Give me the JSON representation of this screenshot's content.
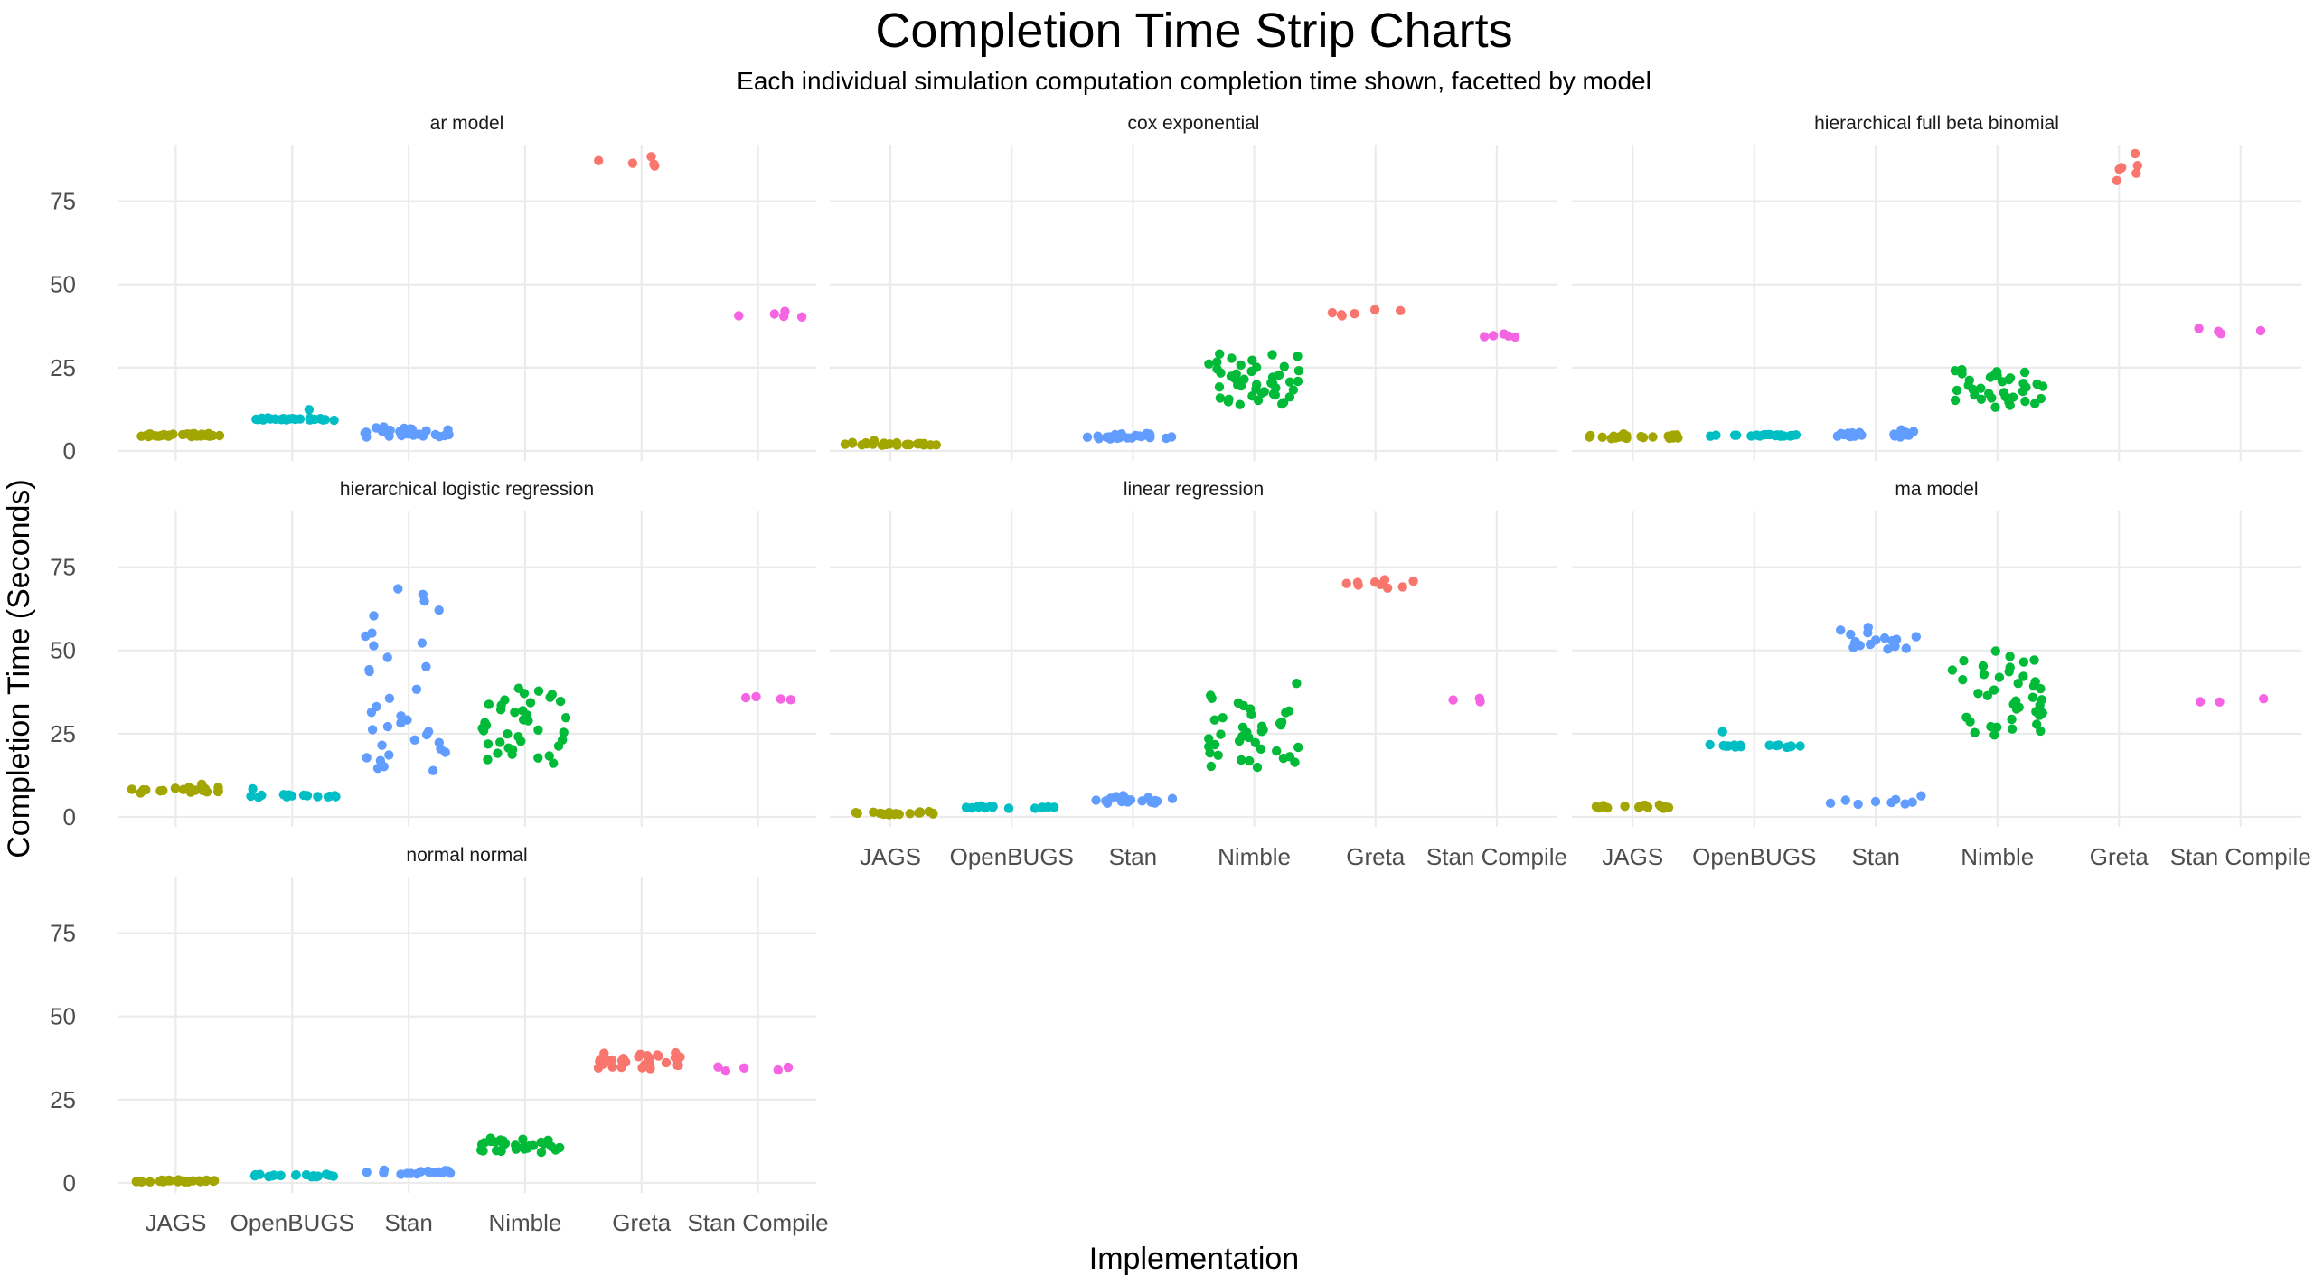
{
  "chart_data": {
    "type": "scatter",
    "subtype": "strip-chart-faceted",
    "title": "Completion Time Strip Charts",
    "subtitle": "Each individual simulation computation completion time shown, facetted by model",
    "xlabel": "Implementation",
    "ylabel": "Completion Time (Seconds)",
    "ylim": [
      -3,
      92
    ],
    "yticks": [
      0,
      25,
      50,
      75
    ],
    "categories": [
      "JAGS",
      "OpenBUGS",
      "Stan",
      "Nimble",
      "Greta",
      "Stan Compile"
    ],
    "colors": {
      "JAGS": "#A3A500",
      "OpenBUGS": "#00BFC4",
      "Stan": "#619CFF",
      "Nimble": "#00BA38",
      "Greta": "#F8766D",
      "Stan Compile": "#F564E3"
    },
    "facets": [
      {
        "label": "ar model",
        "series": {
          "JAGS": [
            4.9,
            4.4,
            5.1,
            4.6,
            4.3,
            5.0,
            4.7,
            4.4,
            5.2,
            4.8,
            4.5,
            4.6,
            5.0,
            4.3,
            4.9,
            4.7,
            5.1,
            4.5,
            4.8,
            4.6,
            4.4,
            5.0,
            4.7,
            4.9,
            4.5,
            4.8,
            4.6,
            5.2,
            4.4,
            4.7
          ],
          "OpenBUGS": [
            9.6,
            9.3,
            9.8,
            9.5,
            9.4,
            9.7,
            9.2,
            9.6,
            9.5,
            9.9,
            9.3,
            9.4,
            9.7,
            9.6,
            9.5,
            9.3,
            9.8,
            9.4,
            9.6,
            9.5,
            12.4,
            9.7,
            9.3,
            9.6,
            9.5
          ],
          "Stan": [
            5.8,
            4.6,
            6.3,
            5.1,
            4.2,
            5.5,
            6.9,
            4.8,
            5.3,
            6.1,
            4.4,
            5.7,
            7.2,
            4.9,
            5.2,
            6.5,
            4.3,
            5.0,
            6.0,
            5.6,
            4.7,
            6.8,
            5.4,
            4.5,
            6.2,
            5.1,
            4.9,
            5.9,
            6.6,
            4.6
          ],
          "Nimble": [],
          "Greta": [
            88.4,
            87.2,
            86.1,
            85.6,
            86.4
          ],
          "Stan Compile": [
            41.9,
            41.1,
            40.6,
            40.4,
            40.2
          ]
        }
      },
      {
        "label": "cox exponential",
        "series": {
          "JAGS": [
            2.1,
            1.8,
            2.4,
            1.9,
            2.2,
            1.7,
            2.0,
            2.3,
            1.8,
            2.5,
            2.1,
            1.9,
            2.2,
            2.0,
            1.8,
            2.4,
            2.1,
            1.7,
            2.3,
            2.0,
            3.1,
            1.9,
            2.2,
            2.1,
            1.8
          ],
          "OpenBUGS": [],
          "Stan": [
            4.3,
            3.8,
            4.9,
            4.1,
            3.6,
            4.6,
            5.2,
            4.0,
            4.4,
            3.9,
            4.7,
            4.2,
            5.0,
            3.7,
            4.5,
            4.1,
            4.8,
            3.9,
            4.3,
            4.6,
            4.0,
            5.1,
            4.2,
            3.8,
            4.4
          ],
          "Nimble": [
            15.2,
            28.4,
            22.1,
            18.6,
            25.3,
            14.1,
            19.8,
            27.2,
            16.5,
            23.4,
            20.7,
            13.9,
            26.1,
            17.8,
            21.5,
            24.6,
            15.9,
            19.2,
            29.1,
            22.8,
            17.1,
            20.2,
            25.8,
            14.8,
            23.9,
            18.3,
            21.1,
            26.7,
            16.2,
            19.5,
            24.1,
            15.5,
            22.4,
            17.4,
            20.9,
            27.8,
            18.9,
            23.1,
            14.5,
            21.8,
            25.1,
            16.8,
            19.9,
            28.9,
            20.4
          ],
          "Greta": [
            41.2,
            40.6,
            42.1,
            41.5,
            40.9,
            42.4
          ],
          "Stan Compile": [
            34.6,
            34.3,
            34.2,
            34.5,
            35.1
          ]
        }
      },
      {
        "label": "hierarchical full beta binomial",
        "series": {
          "JAGS": [
            4.1,
            3.8,
            4.5,
            4.3,
            3.9,
            4.7,
            4.2,
            4.0,
            5.1,
            4.4,
            3.7,
            4.6,
            4.1,
            4.3,
            3.9,
            4.8,
            4.2,
            4.0,
            4.5,
            4.1,
            3.8,
            4.4,
            4.6,
            4.2,
            3.9
          ],
          "OpenBUGS": [
            4.8,
            4.5,
            4.9,
            4.6,
            4.7,
            4.4,
            4.8,
            4.9,
            4.5,
            4.7,
            4.6,
            4.8,
            4.4,
            4.9,
            4.7,
            4.5,
            4.6,
            4.8,
            4.7,
            4.5
          ],
          "Stan": [
            4.6,
            5.2,
            4.3,
            5.8,
            4.9,
            4.4,
            5.5,
            4.7,
            6.3,
            5.0,
            4.5,
            5.3,
            4.8,
            5.6,
            4.2,
            5.1,
            4.9,
            4.4,
            5.4,
            4.7
          ],
          "Nimble": [
            13.1,
            23.8,
            18.2,
            15.5,
            21.4,
            14.2,
            19.7,
            24.1,
            16.8,
            20.3,
            22.6,
            13.7,
            17.5,
            24.4,
            19.1,
            15.9,
            21.9,
            14.6,
            18.8,
            23.2,
            16.3,
            20.8,
            17.9,
            22.1,
            15.2,
            19.4,
            23.6,
            14.9,
            18.5,
            21.2,
            16.1,
            20.1,
            17.2,
            22.9,
            15.7
          ],
          "Greta": [
            89.3,
            81.2,
            83.4,
            85.1,
            84.6,
            85.7
          ],
          "Stan Compile": [
            36.1,
            35.2,
            35.9,
            36.8
          ]
        }
      },
      {
        "label": "hierarchical logistic regression",
        "series": {
          "JAGS": [
            8.1,
            7.5,
            8.6,
            7.8,
            8.3,
            7.2,
            8.9,
            7.9,
            8.2,
            7.6,
            9.4,
            8.0,
            8.4,
            7.7,
            8.8,
            7.4,
            8.1,
            9.8,
            7.9,
            8.5
          ],
          "OpenBUGS": [
            6.3,
            6.0,
            6.6,
            6.2,
            6.4,
            5.9,
            6.5,
            6.1,
            6.7,
            6.3,
            8.4,
            6.2,
            6.0,
            6.5,
            6.4,
            6.1
          ],
          "Stan": [
            13.9,
            68.5,
            15.1,
            25.6,
            43.7,
            17.8,
            62.1,
            30.3,
            20.4,
            52.2,
            27.1,
            14.6,
            55.2,
            38.3,
            23.1,
            66.8,
            31.4,
            18.6,
            47.9,
            26.2,
            16.9,
            60.4,
            35.6,
            22.3,
            51.4,
            29.1,
            19.4,
            44.2,
            24.7,
            64.8,
            28.2,
            54.3,
            33.1,
            21.5,
            45.1
          ],
          "Nimble": [
            16.1,
            37.8,
            22.4,
            29.2,
            33.5,
            18.3,
            26.6,
            35.1,
            20.7,
            31.4,
            24.1,
            38.6,
            17.2,
            28.3,
            34.7,
            21.9,
            30.6,
            25.4,
            36.8,
            19.1,
            27.5,
            32.2,
            23.1,
            35.9,
            18.8,
            29.8,
            24.9,
            33.8,
            20.2,
            26.1,
            37.1,
            22.7,
            31.9,
            17.7,
            28.9,
            25.9,
            34.3,
            21.3
          ],
          "Greta": [],
          "Stan Compile": [
            35.4,
            35.2,
            35.8,
            36.1
          ]
        }
      },
      {
        "label": "linear regression",
        "series": {
          "JAGS": [
            1.1,
            0.8,
            1.4,
            0.9,
            1.2,
            0.7,
            1.0,
            1.5,
            0.9,
            1.3,
            1.1,
            0.8,
            1.2,
            1.0,
            1.6,
            0.9,
            1.1,
            1.3,
            0.8,
            1.0
          ],
          "OpenBUGS": [
            2.9,
            2.6,
            3.1,
            2.8,
            3.2,
            2.7,
            3.0,
            2.9,
            3.3,
            2.8,
            2.6,
            3.1,
            3.0,
            2.7,
            2.9
          ],
          "Stan": [
            4.6,
            4.1,
            5.3,
            4.8,
            6.4,
            4.3,
            5.1,
            4.9,
            5.8,
            4.4,
            5.5,
            4.7,
            6.1,
            4.2,
            5.0,
            4.8,
            5.6,
            4.5
          ],
          "Nimble": [
            15.2,
            40.1,
            22.3,
            28.5,
            17.6,
            32.4,
            19.8,
            25.7,
            35.6,
            16.4,
            29.8,
            21.1,
            26.9,
            33.4,
            18.5,
            24.2,
            30.7,
            20.4,
            27.6,
            14.9,
            23.5,
            31.3,
            19.2,
            26.1,
            36.5,
            17.1,
            22.8,
            29.1,
            24.8,
            34.2,
            20.9,
            27.2,
            18.1,
            25.4,
            31.8,
            21.7,
            28.1,
            16.8,
            23.9
          ],
          "Greta": [
            70.4,
            69.1,
            70.8,
            69.6,
            71.2,
            70.1,
            68.7,
            70.5,
            69.8
          ],
          "Stan Compile": [
            35.1,
            34.6,
            35.6
          ]
        }
      },
      {
        "label": "ma model",
        "series": {
          "JAGS": [
            3.1,
            2.7,
            3.4,
            2.9,
            3.2,
            2.6,
            3.5,
            3.0,
            2.8,
            3.3,
            3.1,
            2.9,
            3.6,
            2.7,
            3.0,
            3.2,
            2.8,
            3.4
          ],
          "OpenBUGS": [
            21.3,
            21.0,
            21.6,
            21.2,
            21.5,
            20.9,
            21.4,
            21.7,
            21.1,
            21.3,
            21.6,
            21.0,
            21.4,
            25.6,
            21.2,
            21.5,
            21.3,
            21.1
          ],
          "Stan": [
            51.2,
            54.8,
            52.6,
            50.4,
            53.7,
            56.9,
            51.8,
            55.3,
            52.2,
            50.9,
            54.1,
            53.3,
            51.5,
            56.1,
            52.9,
            50.6,
            53.1,
            5.2,
            4.1,
            3.8,
            4.6,
            6.3,
            4.4,
            3.9,
            5.0,
            4.3
          ],
          "Nimble": [
            24.6,
            49.8,
            31.2,
            38.5,
            27.8,
            44.1,
            33.6,
            41.2,
            26.4,
            46.5,
            35.9,
            29.3,
            42.8,
            37.1,
            25.8,
            48.2,
            32.4,
            40.1,
            28.6,
            45.3,
            34.8,
            30.5,
            43.6,
            36.4,
            27.1,
            39.3,
            47.1,
            32.9,
            41.9,
            29.9,
            35.2,
            44.9,
            38.1,
            26.9,
            46.9,
            33.8,
            40.6,
            31.6,
            25.3,
            42.2
          ],
          "Greta": [],
          "Stan Compile": [
            35.5,
            34.6,
            34.5
          ]
        }
      },
      {
        "label": "normal normal",
        "series": {
          "JAGS": [
            0.6,
            0.3,
            0.8,
            0.5,
            0.4,
            0.7,
            0.6,
            0.3,
            0.9,
            0.5,
            0.4,
            0.6,
            0.8,
            0.5,
            0.3,
            0.7,
            0.6,
            0.4,
            0.5,
            0.8,
            0.6,
            0.4,
            0.7,
            0.5,
            0.3
          ],
          "OpenBUGS": [
            2.2,
            1.9,
            2.5,
            2.1,
            2.4,
            1.8,
            2.3,
            2.0,
            2.6,
            2.2,
            1.9,
            2.4,
            2.1,
            2.5,
            2.0,
            2.3,
            1.8,
            2.2,
            2.4,
            2.1
          ],
          "Stan": [
            3.1,
            2.7,
            3.6,
            3.0,
            3.4,
            2.8,
            3.8,
            3.2,
            2.9,
            3.5,
            3.1,
            2.6,
            3.7,
            3.3,
            3.0,
            3.4,
            2.8,
            3.2
          ],
          "Nimble": [
            9.2,
            12.8,
            10.6,
            11.5,
            9.8,
            13.1,
            10.2,
            12.1,
            11.1,
            9.5,
            12.5,
            10.9,
            11.8,
            9.9,
            13.4,
            10.4,
            11.3,
            12.3,
            10.1,
            11.7,
            9.6,
            12.9,
            10.8,
            11.4,
            10.5,
            12.2,
            11.0,
            9.7,
            12.6,
            11.2
          ],
          "Greta": [
            35.1,
            38.6,
            36.2,
            34.7,
            37.4,
            35.8,
            39.1,
            36.9,
            34.3,
            37.8,
            35.5,
            38.2,
            36.5,
            34.9,
            37.1,
            35.3,
            38.9,
            36.7,
            35.9,
            37.6,
            34.5,
            36.3,
            38.4,
            35.6,
            37.2,
            36.1,
            34.8,
            38.1,
            35.4,
            36.8,
            37.9,
            35.2,
            36.4,
            37.5,
            34.6
          ],
          "Stan Compile": [
            34.7,
            33.9,
            33.6,
            34.8,
            34.5
          ]
        }
      }
    ]
  }
}
